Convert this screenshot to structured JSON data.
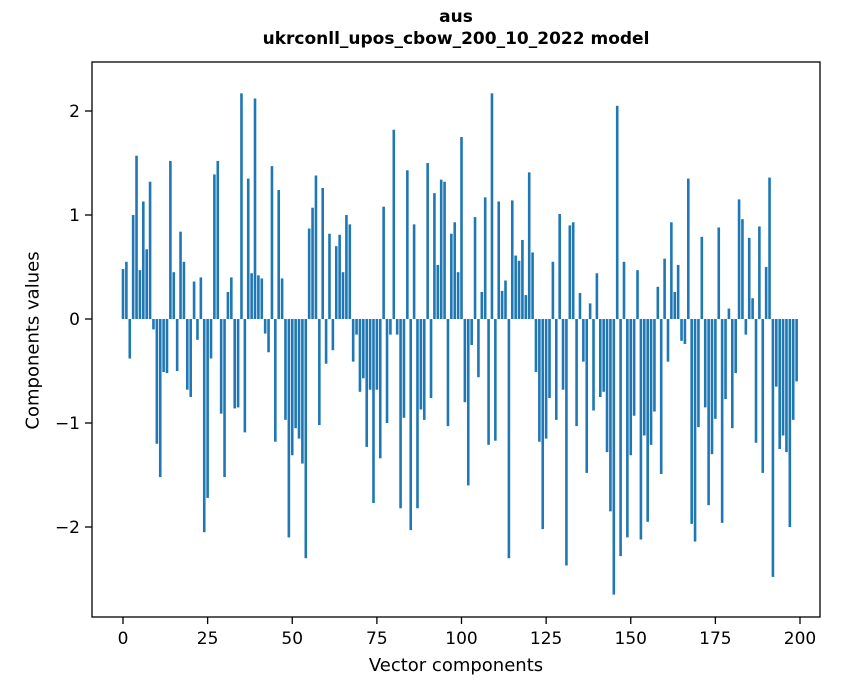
{
  "figure": {
    "title_line1": "aus",
    "title_line2": "ukrconll_upos_cbow_200_10_2022 model",
    "xlabel": "Vector components",
    "ylabel": "Components values"
  },
  "chart_data": {
    "type": "bar",
    "title": "aus\nukrconll_upos_cbow_200_10_2022 model",
    "xlabel": "Vector components",
    "ylabel": "Components values",
    "bar_color": "#1f77b4",
    "axis_color": "#000000",
    "grid": false,
    "legend": false,
    "n_components": 200,
    "x_ticks": [
      0,
      25,
      50,
      75,
      100,
      125,
      150,
      175,
      200
    ],
    "y_ticks": [
      2,
      1,
      0,
      -1,
      -2
    ],
    "y_tick_labels": [
      "2",
      "1",
      "0",
      "−1",
      "−2"
    ],
    "xlim": [
      -9.2,
      210.2
    ],
    "ylim": [
      -2.87,
      2.47
    ],
    "values": [
      0.48,
      0.55,
      -0.38,
      1.0,
      1.57,
      0.47,
      1.13,
      0.67,
      1.32,
      -0.1,
      -1.2,
      -1.52,
      -0.51,
      -0.52,
      1.52,
      0.45,
      -0.5,
      0.84,
      0.55,
      -0.68,
      -0.75,
      0.36,
      -0.2,
      0.4,
      -2.05,
      -1.72,
      -0.38,
      1.39,
      1.52,
      -0.91,
      -1.52,
      0.26,
      0.4,
      -0.86,
      -0.85,
      2.17,
      -1.09,
      1.35,
      0.44,
      2.12,
      0.42,
      0.39,
      -0.14,
      -0.32,
      1.47,
      -1.18,
      1.24,
      0.39,
      -0.97,
      -2.1,
      -1.31,
      -1.05,
      -1.15,
      -1.39,
      -2.3,
      0.87,
      1.07,
      1.38,
      -1.02,
      1.26,
      -0.43,
      0.82,
      -0.3,
      0.7,
      0.81,
      0.45,
      1.0,
      0.91,
      -0.41,
      -0.15,
      -0.7,
      -0.57,
      -1.23,
      -0.68,
      -1.77,
      -0.68,
      -1.34,
      1.08,
      -1.0,
      -0.15,
      1.82,
      -0.15,
      -1.82,
      -0.95,
      1.43,
      -2.03,
      0.91,
      -1.82,
      -0.87,
      -0.97,
      1.5,
      -0.76,
      1.21,
      0.52,
      1.34,
      1.32,
      -1.03,
      0.82,
      0.93,
      0.45,
      1.75,
      -0.8,
      -1.6,
      -0.25,
      0.98,
      -0.56,
      0.26,
      1.17,
      -1.21,
      2.17,
      -1.17,
      1.13,
      0.27,
      0.37,
      -2.3,
      1.14,
      0.61,
      0.56,
      0.76,
      0.23,
      1.41,
      0.64,
      -0.51,
      -1.18,
      -2.02,
      -1.15,
      -0.76,
      0.55,
      -0.97,
      1.01,
      -0.68,
      -2.37,
      0.9,
      0.93,
      -1.03,
      0.25,
      -0.41,
      -1.48,
      0.15,
      -0.88,
      0.44,
      -0.75,
      -0.7,
      -1.28,
      -1.85,
      -2.65,
      2.05,
      -2.28,
      0.55,
      -2.1,
      -1.31,
      -0.93,
      0.47,
      -2.12,
      -1.12,
      -1.95,
      -1.21,
      -0.89,
      0.31,
      -1.49,
      0.58,
      -0.41,
      0.93,
      0.26,
      0.52,
      -0.21,
      -0.24,
      1.35,
      -1.97,
      -2.14,
      -1.04,
      0.79,
      -0.85,
      -1.79,
      -1.3,
      -0.96,
      0.88,
      -1.96,
      -0.77,
      0.1,
      -1.05,
      -0.52,
      1.15,
      0.96,
      -0.15,
      0.78,
      0.2,
      -1.19,
      0.89,
      -1.48,
      0.5,
      1.36,
      -2.48,
      -0.65,
      -1.25,
      -1.12,
      -1.28,
      -2.0,
      -0.97,
      -0.6
    ]
  }
}
